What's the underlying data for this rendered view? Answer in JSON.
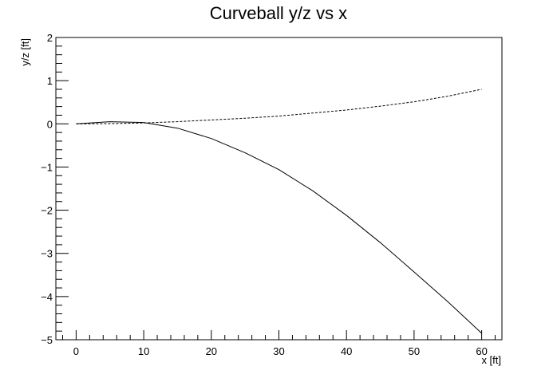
{
  "chart_data": {
    "type": "line",
    "title": "Curveball y/z vs x",
    "xlabel": "x [ft]",
    "ylabel": "y/z [ft]",
    "xlim": [
      -3,
      63
    ],
    "ylim": [
      -5,
      2
    ],
    "xticks": [
      0,
      10,
      20,
      30,
      40,
      50,
      60
    ],
    "yticks": [
      -5,
      -4,
      -3,
      -2,
      -1,
      0,
      1,
      2
    ],
    "xtick_labels": [
      "0",
      "10",
      "20",
      "30",
      "40",
      "50",
      "60"
    ],
    "ytick_labels": [
      "−5",
      "−4",
      "−3",
      "−2",
      "−1",
      "0",
      "1",
      "2"
    ],
    "grid": false,
    "legend": false,
    "series": [
      {
        "style": "solid",
        "color": "#000000",
        "x": [
          0,
          5,
          10,
          15,
          20,
          25,
          30,
          35,
          40,
          45,
          50,
          55,
          60
        ],
        "y": [
          0,
          0.05,
          0.03,
          -0.1,
          -0.34,
          -0.67,
          -1.06,
          -1.55,
          -2.12,
          -2.75,
          -3.43,
          -4.12,
          -4.85
        ]
      },
      {
        "style": "dashed",
        "color": "#000000",
        "x": [
          0,
          5,
          10,
          15,
          20,
          25,
          30,
          35,
          40,
          45,
          50,
          55,
          60
        ],
        "y": [
          0,
          0.005,
          0.02,
          0.05,
          0.09,
          0.13,
          0.18,
          0.25,
          0.32,
          0.41,
          0.51,
          0.64,
          0.8
        ]
      }
    ]
  }
}
